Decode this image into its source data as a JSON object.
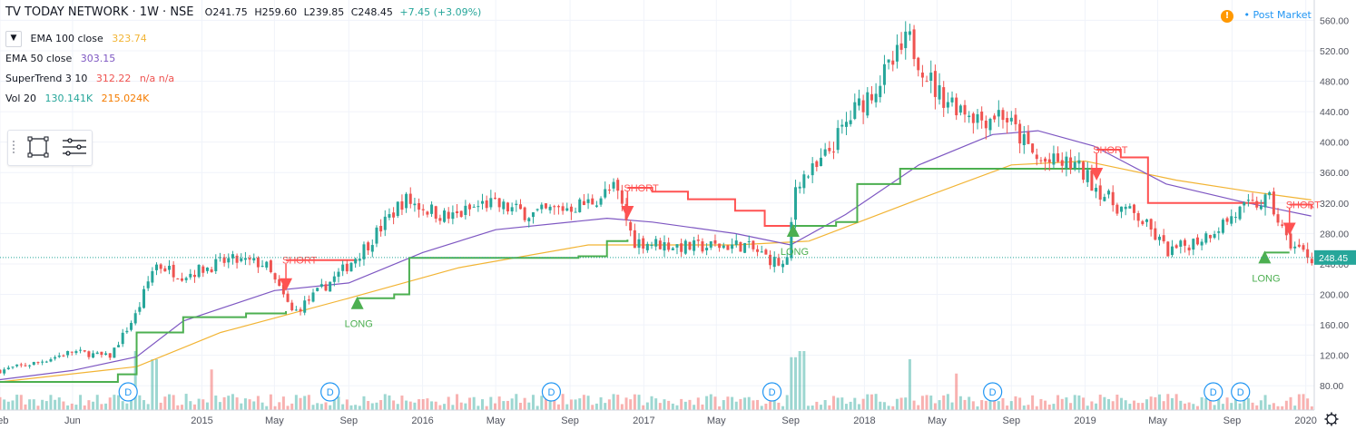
{
  "header": {
    "symbol": "TV TODAY NETWORK · 1W · NSE",
    "open": "O241.75",
    "high": "H259.60",
    "low": "L239.85",
    "close": "C248.45",
    "change": "+7.45 (+3.09%)"
  },
  "indicators": [
    {
      "name": "EMA 100 close",
      "value": "323.74",
      "color": "#f2b434"
    },
    {
      "name": "EMA 50 close",
      "value": "303.15",
      "color": "#7e57c2"
    },
    {
      "name": "SuperTrend 3 10",
      "value": "312.22",
      "extra": "n/a n/a",
      "color": "#ef5350"
    },
    {
      "name": "Vol 20",
      "value": "130.141K",
      "extra": "215.024K",
      "color": "#26a69a",
      "extra_color": "#f57c00"
    }
  ],
  "post_market": {
    "warn_icon": "!",
    "label": "• Post Market"
  },
  "colors": {
    "up": "#26a69a",
    "down": "#ef5350",
    "ema100": "#f2b434",
    "ema50": "#7e57c2",
    "st_up": "#4caf50",
    "st_down": "#ff5252",
    "grid": "#f0f3fa",
    "text": "#131722",
    "dbadge": "#2196f3"
  },
  "chart_data": {
    "type": "candlestick",
    "y_axis": {
      "min": 60,
      "max": 570,
      "ticks": [
        80,
        120,
        160,
        200,
        240,
        280,
        320,
        360,
        400,
        440,
        480,
        520,
        560
      ]
    },
    "x_axis": {
      "start": "2014-02-01",
      "end": "2020-01-15",
      "ticks": [
        {
          "label": "Feb",
          "date": "2014-02-01"
        },
        {
          "label": "Jun",
          "date": "2014-06-01"
        },
        {
          "label": "2015",
          "date": "2015-01-01"
        },
        {
          "label": "May",
          "date": "2015-05-01"
        },
        {
          "label": "Sep",
          "date": "2015-09-01"
        },
        {
          "label": "2016",
          "date": "2016-01-01"
        },
        {
          "label": "May",
          "date": "2016-05-01"
        },
        {
          "label": "Sep",
          "date": "2016-09-01"
        },
        {
          "label": "2017",
          "date": "2017-01-01"
        },
        {
          "label": "May",
          "date": "2017-05-01"
        },
        {
          "label": "Sep",
          "date": "2017-09-01"
        },
        {
          "label": "2018",
          "date": "2018-01-01"
        },
        {
          "label": "May",
          "date": "2018-05-01"
        },
        {
          "label": "Sep",
          "date": "2018-09-01"
        },
        {
          "label": "2019",
          "date": "2019-01-01"
        },
        {
          "label": "May",
          "date": "2019-05-01"
        },
        {
          "label": "Sep",
          "date": "2019-09-01"
        },
        {
          "label": "2020",
          "date": "2020-01-01"
        }
      ]
    },
    "last_price": {
      "value": 248.45,
      "label": "248.45"
    },
    "close_path": [
      {
        "date": "2014-02-01",
        "v": 100
      },
      {
        "date": "2014-04-01",
        "v": 110
      },
      {
        "date": "2014-06-01",
        "v": 125
      },
      {
        "date": "2014-08-01",
        "v": 118
      },
      {
        "date": "2014-09-15",
        "v": 175
      },
      {
        "date": "2014-10-15",
        "v": 240
      },
      {
        "date": "2014-12-01",
        "v": 225
      },
      {
        "date": "2015-02-15",
        "v": 245
      },
      {
        "date": "2015-04-15",
        "v": 240
      },
      {
        "date": "2015-06-01",
        "v": 175
      },
      {
        "date": "2015-07-15",
        "v": 205
      },
      {
        "date": "2015-08-20",
        "v": 230
      },
      {
        "date": "2015-10-01",
        "v": 265
      },
      {
        "date": "2015-12-01",
        "v": 325
      },
      {
        "date": "2016-02-15",
        "v": 300
      },
      {
        "date": "2016-04-15",
        "v": 320
      },
      {
        "date": "2016-07-01",
        "v": 305
      },
      {
        "date": "2016-10-01",
        "v": 320
      },
      {
        "date": "2016-11-15",
        "v": 340
      },
      {
        "date": "2016-12-15",
        "v": 270
      },
      {
        "date": "2017-03-15",
        "v": 262
      },
      {
        "date": "2017-06-15",
        "v": 265
      },
      {
        "date": "2017-08-25",
        "v": 235
      },
      {
        "date": "2017-09-10",
        "v": 350
      },
      {
        "date": "2017-10-15",
        "v": 365
      },
      {
        "date": "2017-12-15",
        "v": 440
      },
      {
        "date": "2018-02-15",
        "v": 500
      },
      {
        "date": "2018-03-15",
        "v": 535
      },
      {
        "date": "2018-05-01",
        "v": 465
      },
      {
        "date": "2018-07-15",
        "v": 430
      },
      {
        "date": "2018-08-15",
        "v": 440
      },
      {
        "date": "2018-10-15",
        "v": 375
      },
      {
        "date": "2018-12-15",
        "v": 370
      },
      {
        "date": "2019-02-15",
        "v": 320
      },
      {
        "date": "2019-04-01",
        "v": 300
      },
      {
        "date": "2019-05-20",
        "v": 255
      },
      {
        "date": "2019-07-15",
        "v": 275
      },
      {
        "date": "2019-09-15",
        "v": 310
      },
      {
        "date": "2019-11-01",
        "v": 325
      },
      {
        "date": "2019-12-01",
        "v": 270
      },
      {
        "date": "2020-01-10",
        "v": 248
      }
    ],
    "ema50": [
      {
        "date": "2014-02-01",
        "v": 88
      },
      {
        "date": "2014-06-01",
        "v": 100
      },
      {
        "date": "2014-09-15",
        "v": 118
      },
      {
        "date": "2014-12-01",
        "v": 165
      },
      {
        "date": "2015-05-01",
        "v": 205
      },
      {
        "date": "2015-09-01",
        "v": 215
      },
      {
        "date": "2016-01-01",
        "v": 255
      },
      {
        "date": "2016-05-01",
        "v": 285
      },
      {
        "date": "2016-11-01",
        "v": 300
      },
      {
        "date": "2017-01-15",
        "v": 295
      },
      {
        "date": "2017-06-01",
        "v": 280
      },
      {
        "date": "2017-09-01",
        "v": 265
      },
      {
        "date": "2017-12-01",
        "v": 305
      },
      {
        "date": "2018-04-01",
        "v": 370
      },
      {
        "date": "2018-08-01",
        "v": 410
      },
      {
        "date": "2018-10-15",
        "v": 415
      },
      {
        "date": "2019-01-15",
        "v": 395
      },
      {
        "date": "2019-05-15",
        "v": 345
      },
      {
        "date": "2019-09-15",
        "v": 322
      },
      {
        "date": "2020-01-10",
        "v": 303
      }
    ],
    "ema100": [
      {
        "date": "2014-02-01",
        "v": 85
      },
      {
        "date": "2014-09-15",
        "v": 105
      },
      {
        "date": "2015-02-01",
        "v": 150
      },
      {
        "date": "2015-09-01",
        "v": 195
      },
      {
        "date": "2016-03-01",
        "v": 235
      },
      {
        "date": "2016-10-01",
        "v": 265
      },
      {
        "date": "2017-06-01",
        "v": 265
      },
      {
        "date": "2017-10-01",
        "v": 270
      },
      {
        "date": "2018-04-01",
        "v": 325
      },
      {
        "date": "2018-09-01",
        "v": 370
      },
      {
        "date": "2019-01-01",
        "v": 375
      },
      {
        "date": "2019-06-01",
        "v": 350
      },
      {
        "date": "2019-10-01",
        "v": 335
      },
      {
        "date": "2020-01-10",
        "v": 324
      }
    ],
    "supertrend": [
      {
        "trend": "up",
        "points": [
          {
            "date": "2014-02-01",
            "v": 85
          },
          {
            "date": "2014-08-15",
            "v": 95
          },
          {
            "date": "2014-09-15",
            "v": 150
          },
          {
            "date": "2014-12-01",
            "v": 170
          },
          {
            "date": "2015-03-15",
            "v": 175
          },
          {
            "date": "2015-05-20",
            "v": 178
          }
        ]
      },
      {
        "trend": "down",
        "points": [
          {
            "date": "2015-05-20",
            "v": 245
          },
          {
            "date": "2015-09-15",
            "v": 245
          }
        ]
      },
      {
        "trend": "up",
        "points": [
          {
            "date": "2015-09-15",
            "v": 195
          },
          {
            "date": "2015-11-15",
            "v": 200
          },
          {
            "date": "2015-12-10",
            "v": 248
          },
          {
            "date": "2016-05-01",
            "v": 248
          },
          {
            "date": "2016-09-15",
            "v": 250
          },
          {
            "date": "2016-11-01",
            "v": 270
          },
          {
            "date": "2016-12-05",
            "v": 272
          }
        ]
      },
      {
        "trend": "down",
        "points": [
          {
            "date": "2016-12-05",
            "v": 340
          },
          {
            "date": "2017-01-15",
            "v": 335
          },
          {
            "date": "2017-03-15",
            "v": 325
          },
          {
            "date": "2017-06-01",
            "v": 310
          },
          {
            "date": "2017-07-20",
            "v": 290
          },
          {
            "date": "2017-09-05",
            "v": 285
          }
        ]
      },
      {
        "trend": "up",
        "points": [
          {
            "date": "2017-09-05",
            "v": 290
          },
          {
            "date": "2017-11-15",
            "v": 295
          },
          {
            "date": "2017-12-20",
            "v": 345
          },
          {
            "date": "2018-03-01",
            "v": 365
          },
          {
            "date": "2018-12-15",
            "v": 365
          },
          {
            "date": "2019-01-20",
            "v": 360
          }
        ]
      },
      {
        "trend": "down",
        "points": [
          {
            "date": "2019-01-20",
            "v": 390
          },
          {
            "date": "2019-03-01",
            "v": 380
          },
          {
            "date": "2019-04-15",
            "v": 320
          },
          {
            "date": "2019-10-01",
            "v": 320
          },
          {
            "date": "2019-10-25",
            "v": 320
          }
        ]
      },
      {
        "trend": "up",
        "points": [
          {
            "date": "2019-10-25",
            "v": 255
          },
          {
            "date": "2019-12-05",
            "v": 255
          }
        ]
      },
      {
        "trend": "down",
        "points": [
          {
            "date": "2019-12-05",
            "v": 318
          },
          {
            "date": "2020-01-10",
            "v": 312
          }
        ]
      }
    ],
    "signals": [
      {
        "type": "SHORT",
        "date": "2015-05-20",
        "label": "SHORT"
      },
      {
        "type": "LONG",
        "date": "2015-09-15",
        "label": "LONG"
      },
      {
        "type": "SHORT",
        "date": "2016-12-05",
        "label": "SHORT"
      },
      {
        "type": "LONG",
        "date": "2017-09-05",
        "label": "LONG"
      },
      {
        "type": "SHORT",
        "date": "2019-01-20",
        "label": "SHORT"
      },
      {
        "type": "LONG",
        "date": "2019-10-25",
        "label": "LONG"
      },
      {
        "type": "SHORT",
        "date": "2019-12-05",
        "label": "SHORT"
      }
    ],
    "dividends": [
      {
        "date": "2014-09-01",
        "label": "D"
      },
      {
        "date": "2015-08-01",
        "label": "D"
      },
      {
        "date": "2016-08-01",
        "label": "D"
      },
      {
        "date": "2017-08-01",
        "label": "D"
      },
      {
        "date": "2018-08-01",
        "label": "D"
      },
      {
        "date": "2019-08-01",
        "label": "D"
      },
      {
        "date": "2019-09-15",
        "label": "D"
      }
    ],
    "volume_spikes": [
      {
        "date": "2014-09-15",
        "k": 1.0
      },
      {
        "date": "2014-10-15",
        "k": 0.8
      },
      {
        "date": "2015-01-15",
        "k": 0.55
      },
      {
        "date": "2017-09-05",
        "k": 0.85
      },
      {
        "date": "2017-09-20",
        "k": 1.0
      },
      {
        "date": "2018-03-15",
        "k": 0.8
      },
      {
        "date": "2018-06-01",
        "k": 0.45
      }
    ]
  }
}
